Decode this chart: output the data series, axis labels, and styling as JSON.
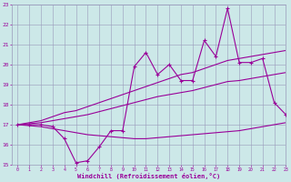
{
  "title": "",
  "xlabel": "Windchill (Refroidissement éolien,°C)",
  "x_values": [
    0,
    1,
    2,
    3,
    4,
    5,
    6,
    7,
    8,
    9,
    10,
    11,
    12,
    13,
    14,
    15,
    16,
    17,
    18,
    19,
    20,
    21,
    22,
    23
  ],
  "y_main": [
    17.0,
    17.0,
    17.0,
    16.9,
    16.3,
    15.1,
    15.2,
    15.9,
    16.7,
    16.7,
    19.9,
    20.6,
    19.5,
    20.0,
    19.2,
    19.2,
    21.2,
    20.4,
    22.8,
    20.1,
    20.1,
    20.3,
    18.1,
    17.5
  ],
  "y_upper": [
    17.0,
    17.1,
    17.2,
    17.4,
    17.6,
    17.7,
    17.9,
    18.1,
    18.3,
    18.5,
    18.7,
    18.9,
    19.1,
    19.3,
    19.5,
    19.6,
    19.8,
    20.0,
    20.2,
    20.3,
    20.4,
    20.5,
    20.6,
    20.7
  ],
  "y_mid": [
    17.0,
    17.05,
    17.1,
    17.2,
    17.3,
    17.4,
    17.5,
    17.65,
    17.8,
    17.95,
    18.1,
    18.25,
    18.4,
    18.5,
    18.6,
    18.7,
    18.85,
    19.0,
    19.15,
    19.2,
    19.3,
    19.4,
    19.5,
    19.6
  ],
  "y_lower": [
    17.0,
    16.95,
    16.9,
    16.8,
    16.7,
    16.6,
    16.5,
    16.45,
    16.4,
    16.35,
    16.3,
    16.3,
    16.35,
    16.4,
    16.45,
    16.5,
    16.55,
    16.6,
    16.65,
    16.7,
    16.8,
    16.9,
    17.0,
    17.1
  ],
  "ylim": [
    15,
    23
  ],
  "xlim": [
    -0.5,
    23
  ],
  "yticks": [
    15,
    16,
    17,
    18,
    19,
    20,
    21,
    22,
    23
  ],
  "xticks": [
    0,
    1,
    2,
    3,
    4,
    5,
    6,
    7,
    8,
    9,
    10,
    11,
    12,
    13,
    14,
    15,
    16,
    17,
    18,
    19,
    20,
    21,
    22,
    23
  ],
  "line_color": "#990099",
  "bg_color": "#cce8e8",
  "grid_color": "#9999bb",
  "marker": "+"
}
